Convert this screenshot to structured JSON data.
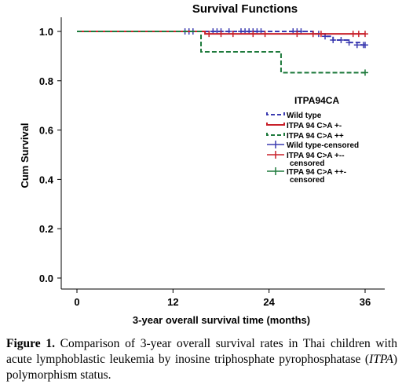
{
  "chart_data": {
    "type": "line",
    "subtype": "kaplan-meier-step",
    "title": "Survival Functions",
    "xlabel": "3-year overall survival time (months)",
    "ylabel": "Cum Survival",
    "xlim": [
      0,
      36
    ],
    "ylim": [
      0.0,
      1.0
    ],
    "x_ticks": [
      "0",
      "12",
      "24",
      "36"
    ],
    "y_ticks": [
      "0.0",
      "0.2",
      "0.4",
      "0.6",
      "0.8",
      "1.0"
    ],
    "grid": false,
    "legend": {
      "title": "ITPA94CA",
      "placement": "right",
      "entries": [
        {
          "label": "Wild type",
          "style": "dash",
          "color": "#3b3bb0"
        },
        {
          "label": "ITPA 94 C>A +-",
          "style": "solid",
          "color": "#c8202a"
        },
        {
          "label": "ITPA 94 C>A ++",
          "style": "dash",
          "color": "#1e7a3c"
        },
        {
          "label": "Wild type-censored",
          "style": "plus",
          "color": "#3b3bb0"
        },
        {
          "label": "ITPA 94 C>A +--\ncensored",
          "style": "plus",
          "color": "#c8202a"
        },
        {
          "label": "ITPA 94 C>A ++-\ncensored",
          "style": "plus",
          "color": "#1e7a3c"
        }
      ]
    },
    "series": [
      {
        "name": "Wild type",
        "color": "#3b3bb0",
        "dash": true,
        "steps": [
          [
            0,
            1.0
          ],
          [
            29.5,
            0.99
          ],
          [
            31,
            0.98
          ],
          [
            32,
            0.965
          ],
          [
            34,
            0.955
          ],
          [
            35.5,
            0.945
          ],
          [
            36,
            0.945
          ]
        ],
        "censored": [
          [
            13.5,
            1.0
          ],
          [
            14,
            1.0
          ],
          [
            14.5,
            1.0
          ],
          [
            17,
            1.0
          ],
          [
            17.5,
            1.0
          ],
          [
            18,
            1.0
          ],
          [
            19,
            1.0
          ],
          [
            20.5,
            1.0
          ],
          [
            21,
            1.0
          ],
          [
            21.5,
            1.0
          ],
          [
            22,
            1.0
          ],
          [
            22.5,
            1.0
          ],
          [
            23,
            1.0
          ],
          [
            27,
            1.0
          ],
          [
            27.5,
            1.0
          ],
          [
            28,
            1.0
          ],
          [
            29.5,
            0.99
          ],
          [
            30.2,
            0.99
          ],
          [
            31,
            0.98
          ],
          [
            32,
            0.965
          ],
          [
            33,
            0.965
          ],
          [
            34,
            0.955
          ],
          [
            35,
            0.945
          ],
          [
            35.8,
            0.945
          ],
          [
            36,
            0.945
          ]
        ]
      },
      {
        "name": "ITPA 94 C>A +-",
        "color": "#c8202a",
        "dash": false,
        "steps": [
          [
            0,
            1.0
          ],
          [
            16,
            1.0
          ],
          [
            16,
            0.99
          ],
          [
            36,
            0.99
          ]
        ],
        "censored": [
          [
            16.5,
            0.99
          ],
          [
            18,
            0.99
          ],
          [
            19.5,
            0.99
          ],
          [
            22,
            0.99
          ],
          [
            23.5,
            0.99
          ],
          [
            27.5,
            0.99
          ],
          [
            29.5,
            0.99
          ],
          [
            30.5,
            0.99
          ],
          [
            34.5,
            0.99
          ],
          [
            35.2,
            0.99
          ],
          [
            36,
            0.99
          ]
        ]
      },
      {
        "name": "ITPA 94 C>A ++",
        "color": "#1e7a3c",
        "dash": true,
        "steps": [
          [
            0,
            1.0
          ],
          [
            15.5,
            1.0
          ],
          [
            15.5,
            0.917
          ],
          [
            25.5,
            0.917
          ],
          [
            25.5,
            0.833
          ],
          [
            36,
            0.833
          ]
        ],
        "censored": [
          [
            36,
            0.833
          ]
        ]
      }
    ]
  },
  "caption": {
    "label": "Figure 1.",
    "text_part1": " Comparison of 3-year overall survival rates in Thai children with acute lymphoblastic leukemia by inosine triphosphate pyrophosphatase (",
    "italic": "ITPA",
    "text_part2": ") polymorphism status."
  }
}
